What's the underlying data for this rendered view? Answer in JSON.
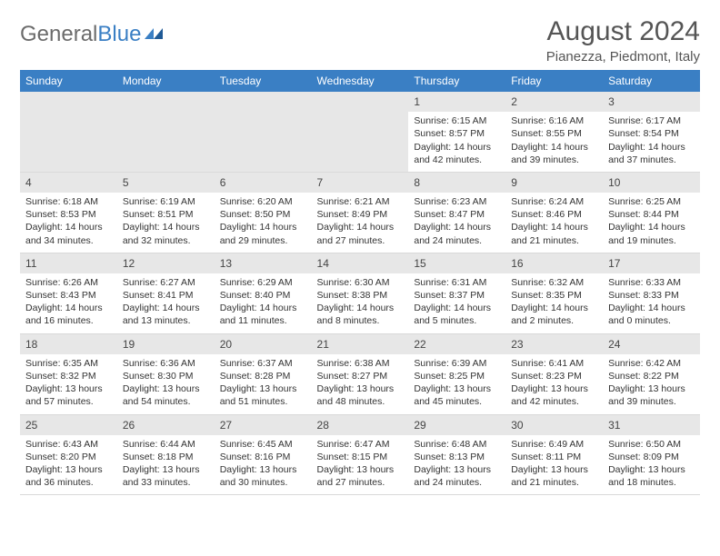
{
  "logo": {
    "part1": "General",
    "part2": "Blue"
  },
  "header": {
    "month": "August 2024",
    "location": "Pianezza, Piedmont, Italy"
  },
  "dayNames": [
    "Sunday",
    "Monday",
    "Tuesday",
    "Wednesday",
    "Thursday",
    "Friday",
    "Saturday"
  ],
  "labels": {
    "sunrise": "Sunrise:",
    "sunset": "Sunset:",
    "daylight": "Daylight:"
  },
  "colors": {
    "header_bg": "#3a7fc4",
    "header_text": "#ffffff",
    "daynum_bg": "#e7e7e7",
    "text": "#333333"
  },
  "weeks": [
    [
      null,
      null,
      null,
      null,
      {
        "n": "1",
        "sr": "6:15 AM",
        "ss": "8:57 PM",
        "dl": "14 hours and 42 minutes."
      },
      {
        "n": "2",
        "sr": "6:16 AM",
        "ss": "8:55 PM",
        "dl": "14 hours and 39 minutes."
      },
      {
        "n": "3",
        "sr": "6:17 AM",
        "ss": "8:54 PM",
        "dl": "14 hours and 37 minutes."
      }
    ],
    [
      {
        "n": "4",
        "sr": "6:18 AM",
        "ss": "8:53 PM",
        "dl": "14 hours and 34 minutes."
      },
      {
        "n": "5",
        "sr": "6:19 AM",
        "ss": "8:51 PM",
        "dl": "14 hours and 32 minutes."
      },
      {
        "n": "6",
        "sr": "6:20 AM",
        "ss": "8:50 PM",
        "dl": "14 hours and 29 minutes."
      },
      {
        "n": "7",
        "sr": "6:21 AM",
        "ss": "8:49 PM",
        "dl": "14 hours and 27 minutes."
      },
      {
        "n": "8",
        "sr": "6:23 AM",
        "ss": "8:47 PM",
        "dl": "14 hours and 24 minutes."
      },
      {
        "n": "9",
        "sr": "6:24 AM",
        "ss": "8:46 PM",
        "dl": "14 hours and 21 minutes."
      },
      {
        "n": "10",
        "sr": "6:25 AM",
        "ss": "8:44 PM",
        "dl": "14 hours and 19 minutes."
      }
    ],
    [
      {
        "n": "11",
        "sr": "6:26 AM",
        "ss": "8:43 PM",
        "dl": "14 hours and 16 minutes."
      },
      {
        "n": "12",
        "sr": "6:27 AM",
        "ss": "8:41 PM",
        "dl": "14 hours and 13 minutes."
      },
      {
        "n": "13",
        "sr": "6:29 AM",
        "ss": "8:40 PM",
        "dl": "14 hours and 11 minutes."
      },
      {
        "n": "14",
        "sr": "6:30 AM",
        "ss": "8:38 PM",
        "dl": "14 hours and 8 minutes."
      },
      {
        "n": "15",
        "sr": "6:31 AM",
        "ss": "8:37 PM",
        "dl": "14 hours and 5 minutes."
      },
      {
        "n": "16",
        "sr": "6:32 AM",
        "ss": "8:35 PM",
        "dl": "14 hours and 2 minutes."
      },
      {
        "n": "17",
        "sr": "6:33 AM",
        "ss": "8:33 PM",
        "dl": "14 hours and 0 minutes."
      }
    ],
    [
      {
        "n": "18",
        "sr": "6:35 AM",
        "ss": "8:32 PM",
        "dl": "13 hours and 57 minutes."
      },
      {
        "n": "19",
        "sr": "6:36 AM",
        "ss": "8:30 PM",
        "dl": "13 hours and 54 minutes."
      },
      {
        "n": "20",
        "sr": "6:37 AM",
        "ss": "8:28 PM",
        "dl": "13 hours and 51 minutes."
      },
      {
        "n": "21",
        "sr": "6:38 AM",
        "ss": "8:27 PM",
        "dl": "13 hours and 48 minutes."
      },
      {
        "n": "22",
        "sr": "6:39 AM",
        "ss": "8:25 PM",
        "dl": "13 hours and 45 minutes."
      },
      {
        "n": "23",
        "sr": "6:41 AM",
        "ss": "8:23 PM",
        "dl": "13 hours and 42 minutes."
      },
      {
        "n": "24",
        "sr": "6:42 AM",
        "ss": "8:22 PM",
        "dl": "13 hours and 39 minutes."
      }
    ],
    [
      {
        "n": "25",
        "sr": "6:43 AM",
        "ss": "8:20 PM",
        "dl": "13 hours and 36 minutes."
      },
      {
        "n": "26",
        "sr": "6:44 AM",
        "ss": "8:18 PM",
        "dl": "13 hours and 33 minutes."
      },
      {
        "n": "27",
        "sr": "6:45 AM",
        "ss": "8:16 PM",
        "dl": "13 hours and 30 minutes."
      },
      {
        "n": "28",
        "sr": "6:47 AM",
        "ss": "8:15 PM",
        "dl": "13 hours and 27 minutes."
      },
      {
        "n": "29",
        "sr": "6:48 AM",
        "ss": "8:13 PM",
        "dl": "13 hours and 24 minutes."
      },
      {
        "n": "30",
        "sr": "6:49 AM",
        "ss": "8:11 PM",
        "dl": "13 hours and 21 minutes."
      },
      {
        "n": "31",
        "sr": "6:50 AM",
        "ss": "8:09 PM",
        "dl": "13 hours and 18 minutes."
      }
    ]
  ]
}
